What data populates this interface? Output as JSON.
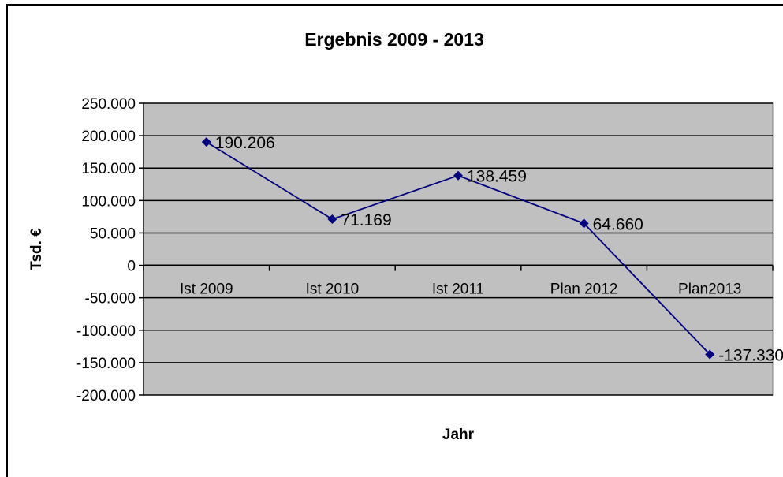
{
  "chart_data": {
    "type": "line",
    "title": "Ergebnis 2009 - 2013",
    "xlabel": "Jahr",
    "ylabel": "Tsd. €",
    "categories": [
      "Ist 2009",
      "Ist 2010",
      "Ist 2011",
      "Plan 2012",
      "Plan2013"
    ],
    "series": [
      {
        "values": [
          190206,
          71169,
          138459,
          64660,
          -137330
        ]
      }
    ],
    "data_labels": [
      "190.206",
      "71.169",
      "138.459",
      "64.660",
      "-137.330"
    ],
    "ylim": [
      -200000,
      250000
    ],
    "yticks": [
      250000,
      200000,
      150000,
      100000,
      50000,
      0,
      -50000,
      -100000,
      -150000,
      -200000
    ],
    "ytick_labels": [
      "250.000",
      "200.000",
      "150.000",
      "100.000",
      "50.000",
      "0",
      "-50.000",
      "-100.000",
      "-150.000",
      "-200.000"
    ],
    "grid": true,
    "legend": "none",
    "colors": {
      "line": "#000080",
      "plot_background": "#c0c0c0",
      "gridline": "#000000"
    }
  }
}
